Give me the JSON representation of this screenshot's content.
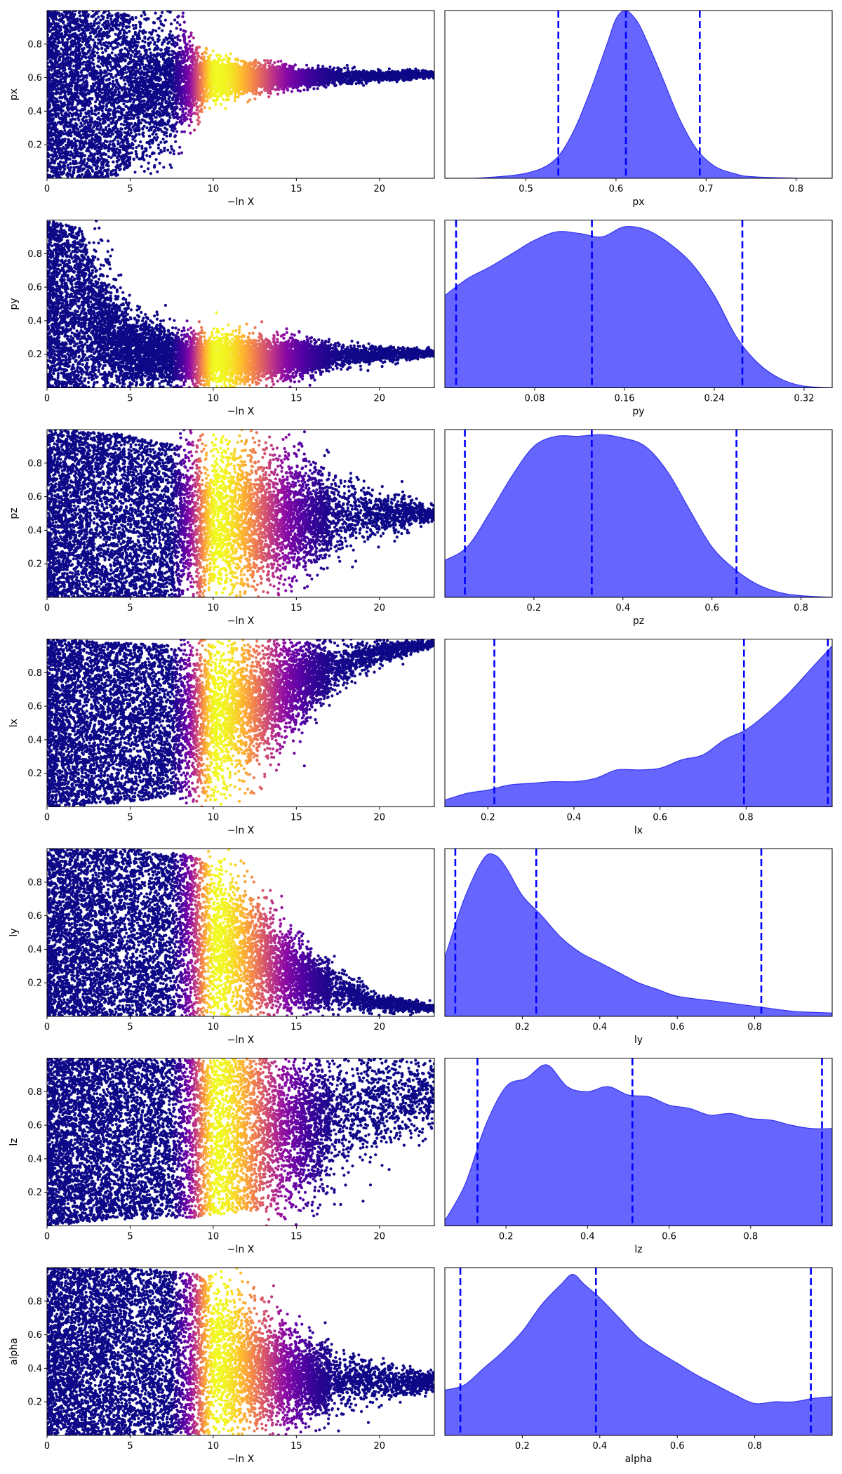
{
  "figure": {
    "rows": [
      "px",
      "py",
      "pz",
      "lx",
      "ly",
      "lz",
      "alpha"
    ],
    "colormap": "plasma",
    "scatter_color_encodes": "posterior weight",
    "hist_fill_color": "#6666ff",
    "hist_edge_color": "#3333ee",
    "quantile_line_color": "#0000ff"
  },
  "chart_data": [
    {
      "type": "scatter",
      "param": "px",
      "xlabel": "−ln X",
      "ylabel": "px",
      "xlim": [
        0,
        23.3
      ],
      "ylim": [
        0.0,
        1.0
      ],
      "xticks": [
        0,
        5,
        10,
        15,
        20
      ],
      "yticks": [
        0.2,
        0.4,
        0.6,
        0.8
      ],
      "trace": {
        "center": [
          0.5,
          0.5,
          0.56,
          0.6,
          0.6,
          0.61,
          0.62
        ],
        "spread": [
          0.5,
          0.5,
          0.35,
          0.1,
          0.05,
          0.03,
          0.02
        ],
        "x_at": [
          0,
          4,
          7,
          10,
          15,
          20,
          23
        ]
      },
      "peak_lnx": 10.2,
      "sample_count": 9000
    },
    {
      "type": "area",
      "param": "px",
      "xlabel": "px",
      "xlim": [
        0.41,
        0.84
      ],
      "xticks": [
        0.5,
        0.6,
        0.7,
        0.8
      ],
      "x": [
        0.41,
        0.45,
        0.5,
        0.53,
        0.55,
        0.57,
        0.59,
        0.6,
        0.61,
        0.62,
        0.63,
        0.65,
        0.67,
        0.69,
        0.71,
        0.73,
        0.75,
        0.8,
        0.84
      ],
      "density": [
        0,
        0.002,
        0.03,
        0.1,
        0.25,
        0.5,
        0.8,
        0.95,
        1.0,
        0.96,
        0.87,
        0.62,
        0.36,
        0.17,
        0.07,
        0.03,
        0.01,
        0.001,
        0
      ],
      "quantiles": [
        0.536,
        0.611,
        0.693
      ]
    },
    {
      "type": "scatter",
      "param": "py",
      "xlabel": "−ln X",
      "ylabel": "py",
      "xlim": [
        0,
        23.3
      ],
      "ylim": [
        0.0,
        1.0
      ],
      "xticks": [
        0,
        5,
        10,
        15,
        20
      ],
      "yticks": [
        0.2,
        0.4,
        0.6,
        0.8
      ],
      "trace": {
        "center": [
          0.5,
          0.45,
          0.22,
          0.17,
          0.17,
          0.19,
          0.21
        ],
        "spread": [
          0.5,
          0.5,
          0.22,
          0.14,
          0.12,
          0.06,
          0.02
        ],
        "x_at": [
          0,
          2,
          5,
          8,
          13,
          18,
          23
        ]
      },
      "peak_lnx": 10.2,
      "sample_count": 9000
    },
    {
      "type": "area",
      "param": "py",
      "xlabel": "py",
      "xlim": [
        0.0,
        0.345
      ],
      "xticks": [
        0.08,
        0.16,
        0.24,
        0.32
      ],
      "x": [
        0.0,
        0.02,
        0.04,
        0.06,
        0.08,
        0.1,
        0.12,
        0.14,
        0.16,
        0.18,
        0.2,
        0.22,
        0.24,
        0.26,
        0.28,
        0.3,
        0.32,
        0.345
      ],
      "density": [
        0.55,
        0.65,
        0.72,
        0.8,
        0.88,
        0.93,
        0.92,
        0.9,
        0.96,
        0.94,
        0.86,
        0.74,
        0.55,
        0.3,
        0.14,
        0.05,
        0.01,
        0
      ],
      "quantiles": [
        0.01,
        0.131,
        0.265
      ]
    },
    {
      "type": "scatter",
      "param": "pz",
      "xlabel": "−ln X",
      "ylabel": "pz",
      "xlim": [
        0,
        23.3
      ],
      "ylim": [
        0.0,
        1.0
      ],
      "xticks": [
        0,
        5,
        10,
        15,
        20
      ],
      "yticks": [
        0.2,
        0.4,
        0.6,
        0.8
      ],
      "trace": {
        "center": [
          0.5,
          0.48,
          0.45,
          0.45,
          0.47,
          0.5,
          0.5
        ],
        "spread": [
          0.5,
          0.5,
          0.45,
          0.42,
          0.32,
          0.15,
          0.05
        ],
        "x_at": [
          0,
          4,
          8,
          10,
          15,
          19,
          23
        ]
      },
      "peak_lnx": 10.2,
      "sample_count": 9000
    },
    {
      "type": "area",
      "param": "pz",
      "xlabel": "pz",
      "xlim": [
        0.0,
        0.87
      ],
      "xticks": [
        0.2,
        0.4,
        0.6,
        0.8
      ],
      "x": [
        0.0,
        0.05,
        0.1,
        0.15,
        0.2,
        0.25,
        0.3,
        0.35,
        0.4,
        0.45,
        0.5,
        0.55,
        0.6,
        0.65,
        0.7,
        0.75,
        0.8,
        0.87
      ],
      "density": [
        0.22,
        0.3,
        0.5,
        0.72,
        0.9,
        0.96,
        0.96,
        0.97,
        0.95,
        0.9,
        0.75,
        0.52,
        0.3,
        0.17,
        0.08,
        0.03,
        0.01,
        0
      ],
      "quantiles": [
        0.045,
        0.33,
        0.655
      ]
    },
    {
      "type": "scatter",
      "param": "lx",
      "xlabel": "−ln X",
      "ylabel": "lx",
      "xlim": [
        0,
        23.3
      ],
      "ylim": [
        0.0,
        1.0
      ],
      "xticks": [
        0,
        5,
        10,
        15,
        20
      ],
      "yticks": [
        0.2,
        0.4,
        0.6,
        0.8
      ],
      "trace": {
        "center": [
          0.5,
          0.5,
          0.52,
          0.6,
          0.78,
          0.92,
          0.97
        ],
        "spread": [
          0.5,
          0.48,
          0.44,
          0.36,
          0.18,
          0.06,
          0.02
        ],
        "x_at": [
          0,
          4,
          9,
          12,
          16,
          20,
          23
        ]
      },
      "peak_lnx": 10.2,
      "sample_count": 9000
    },
    {
      "type": "area",
      "param": "lx",
      "xlabel": "lx",
      "xlim": [
        0.1,
        1.0
      ],
      "xticks": [
        0.2,
        0.4,
        0.6,
        0.8
      ],
      "x": [
        0.1,
        0.15,
        0.2,
        0.25,
        0.3,
        0.35,
        0.4,
        0.45,
        0.5,
        0.55,
        0.6,
        0.65,
        0.7,
        0.75,
        0.8,
        0.85,
        0.9,
        0.95,
        1.0
      ],
      "density": [
        0.04,
        0.08,
        0.1,
        0.13,
        0.14,
        0.15,
        0.15,
        0.17,
        0.22,
        0.22,
        0.23,
        0.28,
        0.31,
        0.4,
        0.46,
        0.56,
        0.68,
        0.82,
        0.96
      ],
      "quantiles": [
        0.215,
        0.795,
        0.99
      ]
    },
    {
      "type": "scatter",
      "param": "ly",
      "xlabel": "−ln X",
      "ylabel": "ly",
      "xlim": [
        0,
        23.3
      ],
      "ylim": [
        0.0,
        1.0
      ],
      "xticks": [
        0,
        5,
        10,
        15,
        20
      ],
      "yticks": [
        0.2,
        0.4,
        0.6,
        0.8
      ],
      "trace": {
        "center": [
          0.5,
          0.5,
          0.48,
          0.38,
          0.2,
          0.08,
          0.05
        ],
        "spread": [
          0.5,
          0.5,
          0.48,
          0.35,
          0.15,
          0.05,
          0.02
        ],
        "x_at": [
          0,
          5,
          9,
          12,
          16,
          20,
          23
        ]
      },
      "peak_lnx": 10.2,
      "sample_count": 9000
    },
    {
      "type": "area",
      "param": "ly",
      "xlabel": "ly",
      "xlim": [
        0.0,
        1.0
      ],
      "xticks": [
        0.2,
        0.4,
        0.6,
        0.8
      ],
      "x": [
        0.0,
        0.05,
        0.1,
        0.13,
        0.16,
        0.2,
        0.25,
        0.3,
        0.35,
        0.4,
        0.45,
        0.5,
        0.55,
        0.6,
        0.7,
        0.8,
        0.9,
        1.0
      ],
      "density": [
        0.35,
        0.7,
        0.94,
        0.96,
        0.88,
        0.72,
        0.6,
        0.47,
        0.38,
        0.32,
        0.26,
        0.2,
        0.16,
        0.12,
        0.09,
        0.06,
        0.03,
        0.02
      ],
      "quantiles": [
        0.027,
        0.236,
        0.817
      ]
    },
    {
      "type": "scatter",
      "param": "lz",
      "xlabel": "−ln X",
      "ylabel": "lz",
      "xlim": [
        0,
        23.3
      ],
      "ylim": [
        0.0,
        1.0
      ],
      "xticks": [
        0,
        5,
        10,
        15,
        20
      ],
      "yticks": [
        0.2,
        0.4,
        0.6,
        0.8
      ],
      "trace": {
        "center": [
          0.5,
          0.52,
          0.52,
          0.55,
          0.6,
          0.7,
          0.78
        ],
        "spread": [
          0.5,
          0.48,
          0.47,
          0.45,
          0.4,
          0.3,
          0.2
        ],
        "x_at": [
          0,
          4,
          9,
          13,
          16,
          19,
          23
        ]
      },
      "peak_lnx": 10.2,
      "sample_count": 9000
    },
    {
      "type": "area",
      "param": "lz",
      "xlabel": "lz",
      "xlim": [
        0.05,
        1.0
      ],
      "xticks": [
        0.2,
        0.4,
        0.6,
        0.8
      ],
      "x": [
        0.05,
        0.1,
        0.15,
        0.2,
        0.25,
        0.3,
        0.35,
        0.4,
        0.45,
        0.5,
        0.55,
        0.6,
        0.65,
        0.7,
        0.75,
        0.8,
        0.85,
        0.9,
        0.95,
        1.0
      ],
      "density": [
        0.03,
        0.25,
        0.6,
        0.83,
        0.88,
        0.96,
        0.83,
        0.8,
        0.83,
        0.78,
        0.77,
        0.72,
        0.7,
        0.66,
        0.67,
        0.64,
        0.63,
        0.6,
        0.58,
        0.58
      ],
      "quantiles": [
        0.13,
        0.51,
        0.975
      ]
    },
    {
      "type": "scatter",
      "param": "alpha",
      "xlabel": "−ln X",
      "ylabel": "alpha",
      "xlim": [
        0,
        23.3
      ],
      "ylim": [
        0.0,
        1.0
      ],
      "xticks": [
        0,
        5,
        10,
        15,
        20
      ],
      "yticks": [
        0.2,
        0.4,
        0.6,
        0.8
      ],
      "trace": {
        "center": [
          0.5,
          0.5,
          0.48,
          0.4,
          0.33,
          0.32,
          0.32
        ],
        "spread": [
          0.5,
          0.5,
          0.48,
          0.36,
          0.2,
          0.1,
          0.05
        ],
        "x_at": [
          0,
          5,
          9,
          12,
          16,
          20,
          23
        ]
      },
      "peak_lnx": 10.2,
      "sample_count": 9000
    },
    {
      "type": "area",
      "param": "alpha",
      "xlabel": "alpha",
      "xlim": [
        0.0,
        1.0
      ],
      "xticks": [
        0.2,
        0.4,
        0.6,
        0.8
      ],
      "x": [
        0.0,
        0.05,
        0.1,
        0.15,
        0.2,
        0.25,
        0.3,
        0.33,
        0.36,
        0.4,
        0.45,
        0.5,
        0.55,
        0.6,
        0.65,
        0.7,
        0.75,
        0.8,
        0.85,
        0.9,
        0.95,
        1.0
      ],
      "density": [
        0.27,
        0.3,
        0.4,
        0.5,
        0.62,
        0.78,
        0.9,
        0.96,
        0.9,
        0.82,
        0.7,
        0.58,
        0.5,
        0.43,
        0.36,
        0.3,
        0.24,
        0.19,
        0.2,
        0.2,
        0.22,
        0.23
      ],
      "quantiles": [
        0.04,
        0.39,
        0.945
      ]
    }
  ]
}
